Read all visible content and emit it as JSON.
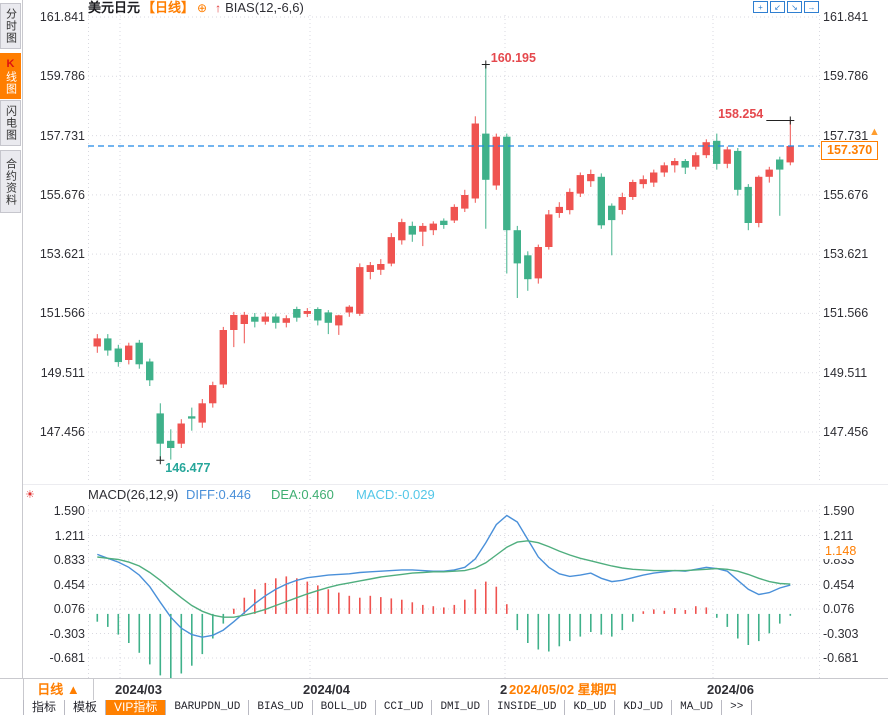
{
  "title_bar": {
    "symbol": "美元日元",
    "period_tag": "【日线】",
    "indicator": "BIAS(12,-6,6)",
    "icons": {
      "add": "⊕",
      "trend_up": "↑"
    },
    "window_controls": [
      "+",
      "↙",
      "↘",
      "→"
    ]
  },
  "sidebar": {
    "items": [
      {
        "label": "分时图",
        "active": false
      },
      {
        "label": "K线图",
        "active": true
      },
      {
        "label": "闪电图",
        "active": false
      },
      {
        "label": "合约资料",
        "active": false
      }
    ]
  },
  "main_chart": {
    "y_axis_labels": [
      "161.841",
      "159.786",
      "157.731",
      "155.676",
      "153.621",
      "151.566",
      "149.511",
      "147.456"
    ],
    "annotations": {
      "high": "160.195",
      "low": "146.477",
      "recent_high": "158.254",
      "last_price": "157.370",
      "marker": "▲"
    }
  },
  "macd_panel": {
    "icon": "☀",
    "header": {
      "name": "MACD(26,12,9)",
      "diff": "DIFF:0.446",
      "dea": "DEA:0.460",
      "macd": "MACD:-0.029"
    },
    "y_axis_labels": [
      "1.590",
      "1.211",
      "0.833",
      "0.454",
      "0.076",
      "-0.303",
      "-0.681"
    ],
    "crosshair_value": "1.148"
  },
  "x_axis": {
    "period_label": "日线 ▲",
    "labels": [
      {
        "text": "2024/03",
        "highlight": false
      },
      {
        "text": "2024/04",
        "highlight": false
      },
      {
        "text": "2024/05",
        "highlight": false
      },
      {
        "text": "2024/05/02 星期四",
        "highlight": true
      },
      {
        "text": "2024/06",
        "highlight": false
      }
    ]
  },
  "toolbar": {
    "tabs": [
      {
        "label": "指标",
        "active": false,
        "mono": false
      },
      {
        "label": "模板",
        "active": false,
        "mono": false
      },
      {
        "label": "VIP指标",
        "active": true,
        "mono": false
      },
      {
        "label": "BARUPDN_UD",
        "active": false,
        "mono": true
      },
      {
        "label": "BIAS_UD",
        "active": false,
        "mono": true
      },
      {
        "label": "BOLL_UD",
        "active": false,
        "mono": true
      },
      {
        "label": "CCI_UD",
        "active": false,
        "mono": true
      },
      {
        "label": "DMI_UD",
        "active": false,
        "mono": true
      },
      {
        "label": "INSIDE_UD",
        "active": false,
        "mono": true
      },
      {
        "label": "KD_UD",
        "active": false,
        "mono": true
      },
      {
        "label": "KDJ_UD",
        "active": false,
        "mono": true
      },
      {
        "label": "MA_UD",
        "active": false,
        "mono": true
      },
      {
        "label": ">>",
        "active": false,
        "mono": true
      }
    ]
  },
  "colors": {
    "up": "#ef5350",
    "down": "#3fb18a",
    "accent": "#ff7e00",
    "last_price_line": "#1e88e5",
    "diff_line": "#4a90d9",
    "dea_line": "#4fae7e",
    "grid": "#d9d9e0"
  },
  "chart_data": {
    "type": "candlestick",
    "title": "美元日元 日线 (USD/JPY daily) with MACD(26,12,9)",
    "x_month_ticks": [
      "2024/03",
      "2024/04",
      "2024/05",
      "2024/06"
    ],
    "price_gridlines": [
      161.841,
      159.786,
      157.731,
      155.676,
      153.621,
      151.566,
      149.511,
      147.456
    ],
    "ylim": [
      145.66,
      161.91
    ],
    "last_price": 157.37,
    "high_annotation": {
      "index": 37,
      "value": 160.195
    },
    "low_annotation": {
      "index": 6,
      "value": 146.477
    },
    "recent_high_annotation": {
      "index": 66,
      "value": 158.254
    },
    "candles_ohlc": [
      [
        150.42,
        150.85,
        150.2,
        150.7
      ],
      [
        150.7,
        150.85,
        150.1,
        150.28
      ],
      [
        150.35,
        150.48,
        149.72,
        149.88
      ],
      [
        149.95,
        150.55,
        149.8,
        150.45
      ],
      [
        150.55,
        150.65,
        149.65,
        149.8
      ],
      [
        149.9,
        150.0,
        149.05,
        149.25
      ],
      [
        148.1,
        148.45,
        146.477,
        147.05
      ],
      [
        147.15,
        147.55,
        146.5,
        146.9
      ],
      [
        147.05,
        147.9,
        146.9,
        147.75
      ],
      [
        148.0,
        148.3,
        147.5,
        147.92
      ],
      [
        147.78,
        148.6,
        147.6,
        148.45
      ],
      [
        148.45,
        149.2,
        148.3,
        149.08
      ],
      [
        149.1,
        151.1,
        148.98,
        150.99
      ],
      [
        150.99,
        151.62,
        150.4,
        151.51
      ],
      [
        151.2,
        151.62,
        150.53,
        151.52
      ],
      [
        151.45,
        151.58,
        151.08,
        151.28
      ],
      [
        151.28,
        151.6,
        151.18,
        151.46
      ],
      [
        151.46,
        151.56,
        151.04,
        151.24
      ],
      [
        151.24,
        151.5,
        151.08,
        151.4
      ],
      [
        151.72,
        151.8,
        151.28,
        151.42
      ],
      [
        151.55,
        151.75,
        151.44,
        151.65
      ],
      [
        151.72,
        151.78,
        151.15,
        151.32
      ],
      [
        151.6,
        151.68,
        150.85,
        151.24
      ],
      [
        151.15,
        151.52,
        150.82,
        151.5
      ],
      [
        151.6,
        151.85,
        151.45,
        151.8
      ],
      [
        151.55,
        153.3,
        151.48,
        153.17
      ],
      [
        153.0,
        153.35,
        152.75,
        153.24
      ],
      [
        153.08,
        153.45,
        152.9,
        153.28
      ],
      [
        153.29,
        154.35,
        153.2,
        154.21
      ],
      [
        154.1,
        154.85,
        153.95,
        154.73
      ],
      [
        154.6,
        154.75,
        154.05,
        154.3
      ],
      [
        154.4,
        154.7,
        153.9,
        154.6
      ],
      [
        154.45,
        154.76,
        154.28,
        154.68
      ],
      [
        154.78,
        154.86,
        154.5,
        154.63
      ],
      [
        154.79,
        155.35,
        154.7,
        155.26
      ],
      [
        155.2,
        155.85,
        155.08,
        155.67
      ],
      [
        155.55,
        158.4,
        155.4,
        158.15
      ],
      [
        157.8,
        160.195,
        154.5,
        156.2
      ],
      [
        156.0,
        157.8,
        155.85,
        157.69
      ],
      [
        157.69,
        157.8,
        152.95,
        154.45
      ],
      [
        154.45,
        154.6,
        152.1,
        153.3
      ],
      [
        153.58,
        153.72,
        152.35,
        152.75
      ],
      [
        152.78,
        153.95,
        152.6,
        153.87
      ],
      [
        153.87,
        155.15,
        153.78,
        155.0
      ],
      [
        155.05,
        155.42,
        154.88,
        155.26
      ],
      [
        155.15,
        155.9,
        155.0,
        155.78
      ],
      [
        155.72,
        156.45,
        155.6,
        156.36
      ],
      [
        156.15,
        156.55,
        155.95,
        156.4
      ],
      [
        156.3,
        156.42,
        154.5,
        154.62
      ],
      [
        155.3,
        155.38,
        153.58,
        154.8
      ],
      [
        155.15,
        155.75,
        155.0,
        155.6
      ],
      [
        155.6,
        156.2,
        155.5,
        156.12
      ],
      [
        156.05,
        156.35,
        155.9,
        156.22
      ],
      [
        156.1,
        156.55,
        155.95,
        156.45
      ],
      [
        156.45,
        156.8,
        156.3,
        156.7
      ],
      [
        156.7,
        156.95,
        156.45,
        156.85
      ],
      [
        156.85,
        156.92,
        156.4,
        156.62
      ],
      [
        156.65,
        157.15,
        156.55,
        157.05
      ],
      [
        157.05,
        157.6,
        156.95,
        157.5
      ],
      [
        157.55,
        157.8,
        156.55,
        156.75
      ],
      [
        156.75,
        157.35,
        156.6,
        157.25
      ],
      [
        157.2,
        157.3,
        155.65,
        155.85
      ],
      [
        155.95,
        156.05,
        154.45,
        154.7
      ],
      [
        154.7,
        156.35,
        154.55,
        156.3
      ],
      [
        156.3,
        156.65,
        156.1,
        156.55
      ],
      [
        156.9,
        157.0,
        154.95,
        156.55
      ],
      [
        156.8,
        158.254,
        156.7,
        157.37
      ]
    ],
    "macd": {
      "gridlines": [
        1.59,
        1.211,
        0.833,
        0.454,
        0.076,
        -0.303,
        -0.681
      ],
      "diff_last": 0.446,
      "dea_last": 0.46,
      "macd_last": -0.029,
      "diff": [
        0.92,
        0.86,
        0.8,
        0.72,
        0.6,
        0.42,
        0.18,
        -0.05,
        -0.22,
        -0.32,
        -0.36,
        -0.33,
        -0.25,
        -0.12,
        0.02,
        0.16,
        0.28,
        0.38,
        0.46,
        0.52,
        0.56,
        0.58,
        0.6,
        0.61,
        0.62,
        0.64,
        0.65,
        0.66,
        0.67,
        0.68,
        0.68,
        0.67,
        0.66,
        0.66,
        0.68,
        0.72,
        0.85,
        1.1,
        1.38,
        1.52,
        1.42,
        1.15,
        0.88,
        0.72,
        0.62,
        0.58,
        0.6,
        0.63,
        0.55,
        0.5,
        0.52,
        0.56,
        0.6,
        0.63,
        0.65,
        0.67,
        0.66,
        0.69,
        0.72,
        0.7,
        0.66,
        0.52,
        0.38,
        0.3,
        0.33,
        0.4,
        0.446
      ],
      "dea": [
        0.88,
        0.86,
        0.84,
        0.8,
        0.74,
        0.64,
        0.52,
        0.38,
        0.25,
        0.13,
        0.04,
        -0.02,
        -0.05,
        -0.05,
        -0.02,
        0.02,
        0.07,
        0.13,
        0.19,
        0.25,
        0.31,
        0.36,
        0.41,
        0.45,
        0.48,
        0.51,
        0.54,
        0.57,
        0.59,
        0.61,
        0.63,
        0.64,
        0.65,
        0.65,
        0.66,
        0.67,
        0.71,
        0.79,
        0.91,
        1.03,
        1.11,
        1.13,
        1.1,
        1.04,
        0.97,
        0.91,
        0.86,
        0.82,
        0.78,
        0.74,
        0.71,
        0.69,
        0.68,
        0.67,
        0.67,
        0.67,
        0.67,
        0.68,
        0.69,
        0.7,
        0.69,
        0.66,
        0.61,
        0.55,
        0.5,
        0.47,
        0.46
      ],
      "hist": [
        -0.12,
        -0.2,
        -0.32,
        -0.45,
        -0.6,
        -0.78,
        -0.95,
        -1.0,
        -0.92,
        -0.8,
        -0.62,
        -0.38,
        -0.15,
        0.08,
        0.25,
        0.38,
        0.48,
        0.55,
        0.58,
        0.55,
        0.5,
        0.44,
        0.38,
        0.33,
        0.28,
        0.25,
        0.28,
        0.26,
        0.24,
        0.22,
        0.18,
        0.14,
        0.12,
        0.1,
        0.14,
        0.22,
        0.38,
        0.5,
        0.42,
        0.15,
        -0.25,
        -0.45,
        -0.55,
        -0.58,
        -0.5,
        -0.42,
        -0.35,
        -0.28,
        -0.32,
        -0.35,
        -0.25,
        -0.12,
        0.04,
        0.07,
        0.05,
        0.09,
        0.06,
        0.12,
        0.1,
        -0.06,
        -0.2,
        -0.38,
        -0.48,
        -0.42,
        -0.3,
        -0.15,
        -0.029
      ]
    }
  }
}
